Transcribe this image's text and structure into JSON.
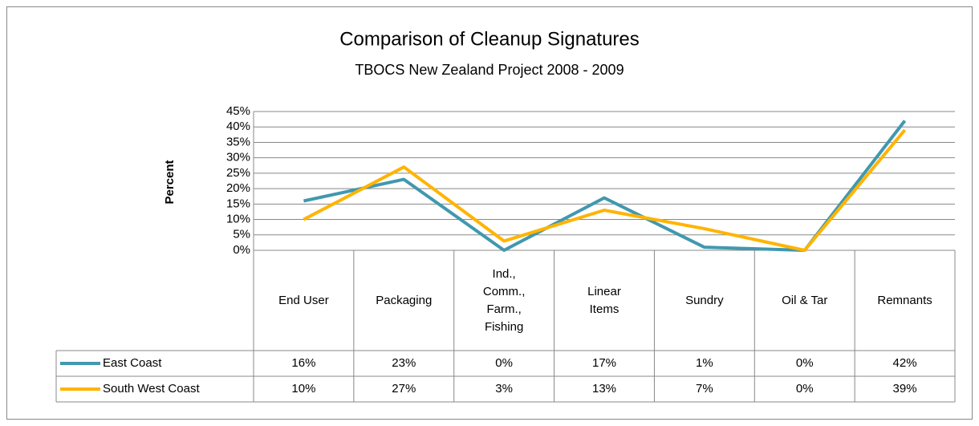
{
  "chart_data": {
    "type": "line",
    "title": "Comparison of Cleanup Signatures",
    "subtitle": "TBOCS New Zealand Project 2008 - 2009",
    "y_label": "Percent",
    "categories": [
      "End User",
      "Packaging",
      "Ind., Comm., Farm., Fishing",
      "Linear Items",
      "Sundry",
      "Oil & Tar",
      "Remnants"
    ],
    "series": [
      {
        "name": "East Coast",
        "color": "#4198af",
        "values": [
          16,
          23,
          0,
          17,
          1,
          0,
          42
        ],
        "value_labels": [
          "16%",
          "23%",
          "0%",
          "17%",
          "1%",
          "0%",
          "42%"
        ]
      },
      {
        "name": "South West Coast",
        "color": "#ffb400",
        "values": [
          10,
          27,
          3,
          13,
          7,
          0,
          39
        ],
        "value_labels": [
          "10%",
          "27%",
          "3%",
          "13%",
          "7%",
          "0%",
          "39%"
        ]
      }
    ],
    "ylim": [
      0,
      45
    ],
    "yticks": [
      {
        "value": 0,
        "label": "0%"
      },
      {
        "value": 5,
        "label": "5%"
      },
      {
        "value": 10,
        "label": "10%"
      },
      {
        "value": 15,
        "label": "15%"
      },
      {
        "value": 20,
        "label": "20%"
      },
      {
        "value": 25,
        "label": "25%"
      },
      {
        "value": 30,
        "label": "30%"
      },
      {
        "value": 35,
        "label": "35%"
      },
      {
        "value": 40,
        "label": "40%"
      },
      {
        "value": 45,
        "label": "45%"
      }
    ],
    "grid": true
  }
}
